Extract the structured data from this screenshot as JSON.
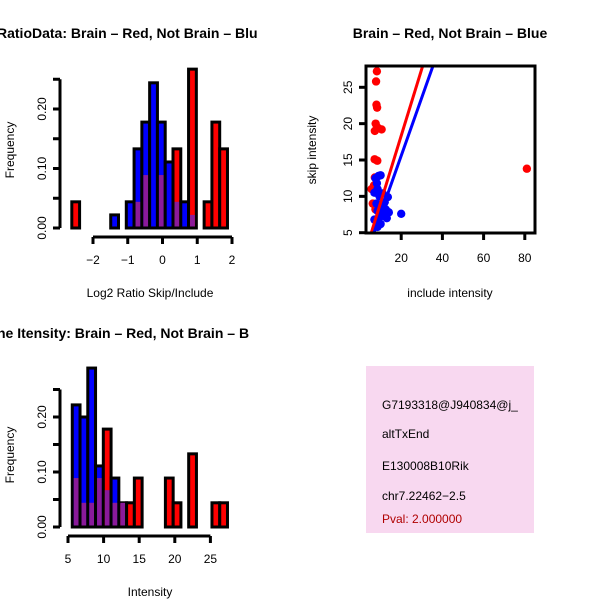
{
  "colors": {
    "red": "#ff0000",
    "blue": "#0000ff",
    "overlap": "#8a1a9a",
    "info_bg": "#f8d8f0",
    "pval": "#b00000"
  },
  "chart_data": [
    {
      "type": "bar",
      "title": "RatioData: Brain – Red, Not Brain – Blu",
      "xlabel": "Log2 Ratio Skip/Include",
      "ylabel": "Frequency",
      "xlim": [
        -2.7,
        2.0
      ],
      "ylim": [
        0,
        0.27
      ],
      "xticks": [
        -2,
        -1,
        0,
        1,
        2
      ],
      "xtick_labels": [
        "−2",
        "−1",
        "0",
        "1",
        "2"
      ],
      "yticks": [
        0,
        0.05,
        0.1,
        0.15,
        0.2,
        0.25
      ],
      "ytick_labels": [
        "0.00",
        "",
        "0.10",
        "",
        "0.20",
        ""
      ],
      "bin_start": -2.61,
      "bin_width": 0.224,
      "series": [
        {
          "name": "Brain",
          "color": "red",
          "values": [
            0.044,
            0,
            0,
            0,
            0,
            0,
            0,
            0,
            0.044,
            0.089,
            0,
            0.089,
            0,
            0.133,
            0,
            0.267,
            0,
            0.044,
            0.178,
            0.133
          ]
        },
        {
          "name": "Not Brain",
          "color": "blue",
          "values": [
            0,
            0,
            0,
            0,
            0,
            0.022,
            0,
            0.044,
            0.133,
            0.178,
            0.244,
            0.178,
            0.111,
            0.044,
            0.044,
            0.022,
            0,
            0,
            0,
            0
          ]
        }
      ]
    },
    {
      "type": "scatter",
      "title": "Brain – Red, Not Brain – Blue",
      "xlabel": "include intensity",
      "ylabel": "skip intensity",
      "xlim": [
        2.8,
        85
      ],
      "ylim": [
        5,
        28
      ],
      "xticks": [
        20,
        40,
        60,
        80
      ],
      "xtick_labels": [
        "20",
        "40",
        "60",
        "80"
      ],
      "yticks": [
        5,
        10,
        15,
        20,
        25
      ],
      "ytick_labels": [
        "5",
        "10",
        "15",
        "20",
        "25"
      ],
      "series": [
        {
          "name": "Brain",
          "color": "red",
          "points": [
            [
              8.2,
              27.2
            ],
            [
              7.8,
              25.8
            ],
            [
              8.0,
              22.6
            ],
            [
              8.3,
              22.2
            ],
            [
              7.6,
              20.0
            ],
            [
              7.2,
              19.0
            ],
            [
              10.5,
              19.2
            ],
            [
              8.8,
              19.4
            ],
            [
              7.1,
              15.1
            ],
            [
              8.4,
              14.9
            ],
            [
              81,
              13.8
            ],
            [
              5.6,
              11.0
            ],
            [
              6.2,
              9.0
            ],
            [
              7.2,
              12.6
            ],
            [
              9.2,
              10.2
            ],
            [
              6.8,
              11.5
            ],
            [
              7.5,
              8.2
            ],
            [
              8.0,
              6.8
            ]
          ]
        },
        {
          "name": "Not Brain",
          "color": "blue",
          "points": [
            [
              7.5,
              12.5
            ],
            [
              9.0,
              12.8
            ],
            [
              10.0,
              12.9
            ],
            [
              8.2,
              11.8
            ],
            [
              7.0,
              10.5
            ],
            [
              8.5,
              11.0
            ],
            [
              9.5,
              10.0
            ],
            [
              11.0,
              10.4
            ],
            [
              13.5,
              9.9
            ],
            [
              12.0,
              9.2
            ],
            [
              8.0,
              9.0
            ],
            [
              10.5,
              8.6
            ],
            [
              12.5,
              8.2
            ],
            [
              14.0,
              7.8
            ],
            [
              9.5,
              7.6
            ],
            [
              11.5,
              7.3
            ],
            [
              13.0,
              7.0
            ],
            [
              8.5,
              8.0
            ],
            [
              7.0,
              6.8
            ],
            [
              10.0,
              6.2
            ],
            [
              8.5,
              5.8
            ],
            [
              20.0,
              7.6
            ],
            [
              11.0,
              8.0
            ],
            [
              9.0,
              6.5
            ]
          ]
        }
      ],
      "fit_lines": [
        {
          "color": "red",
          "from": [
            5.5,
            5
          ],
          "to": [
            30.5,
            28
          ]
        },
        {
          "color": "blue",
          "from": [
            6.8,
            5
          ],
          "to": [
            35.5,
            28
          ]
        }
      ]
    },
    {
      "type": "bar",
      "title": "ne Itensity: Brain – Red, Not Brain – B",
      "xlabel": "Intensity",
      "ylabel": "Frequency",
      "xlim": [
        5,
        28
      ],
      "ylim": [
        0,
        0.29
      ],
      "xticks": [
        5,
        10,
        15,
        20,
        25
      ],
      "xtick_labels": [
        "5",
        "10",
        "15",
        "20",
        "25"
      ],
      "yticks": [
        0,
        0.05,
        0.1,
        0.15,
        0.2,
        0.25
      ],
      "ytick_labels": [
        "0.00",
        "",
        "0.10",
        "",
        "0.20",
        ""
      ],
      "bin_start": 5.6,
      "bin_width": 1.09,
      "series": [
        {
          "name": "Brain",
          "color": "red",
          "values": [
            0.089,
            0.044,
            0.044,
            0.089,
            0.178,
            0.044,
            0.044,
            0.044,
            0.089,
            0,
            0,
            0,
            0.089,
            0.044,
            0,
            0.133,
            0,
            0,
            0.044,
            0.044
          ]
        },
        {
          "name": "Not Brain",
          "color": "blue",
          "values": [
            0.222,
            0.2,
            0.289,
            0.111,
            0.067,
            0.089,
            0.044,
            0,
            0,
            0,
            0,
            0,
            0,
            0,
            0,
            0,
            0,
            0,
            0,
            0
          ]
        }
      ]
    }
  ],
  "info": {
    "lines": [
      "G7193318@J940834@j_",
      "altTxEnd",
      "E130008B10Rik",
      "chr7.22462−2.5"
    ],
    "pval": "Pval: 2.000000"
  }
}
